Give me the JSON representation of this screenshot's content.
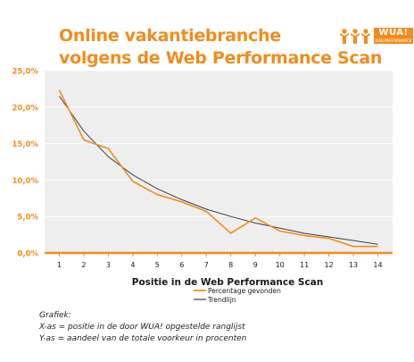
{
  "header": {
    "title_line1": "Online vakantiebranche",
    "title_line2": "volgens de Web Performance Scan"
  },
  "logo": {
    "text": "WUA!",
    "subtext": "WEB PERFORMANCE"
  },
  "colors": {
    "accent": "#f08c1f",
    "trend": "#3a3f52",
    "plot_bg": "#eeeeee",
    "grid": "#ffffff"
  },
  "chart_data": {
    "type": "line",
    "title": "",
    "xlabel": "Positie in de Web Performance Scan",
    "ylabel": "",
    "x": [
      1,
      2,
      3,
      4,
      5,
      6,
      7,
      8,
      9,
      10,
      11,
      12,
      13,
      14
    ],
    "x_tick_labels": [
      "1",
      "2",
      "3",
      "4",
      "5",
      "6",
      "7",
      "8",
      "9",
      "10",
      "11",
      "12",
      "13",
      "14"
    ],
    "ylim": [
      0,
      25
    ],
    "y_ticks": [
      0,
      5,
      10,
      15,
      20,
      25
    ],
    "y_tick_labels": [
      "0,0%",
      "5,0%",
      "10,0%",
      "15,0%",
      "20,0%",
      "25,0%"
    ],
    "grid": true,
    "legend_position": "bottom-right",
    "series": [
      {
        "name": "Percentage gevonden",
        "color": "#f08c1f",
        "values": [
          22.3,
          15.5,
          14.3,
          9.8,
          8.0,
          7.0,
          5.7,
          2.7,
          4.8,
          3.0,
          2.4,
          2.0,
          0.9,
          0.9
        ]
      },
      {
        "name": "Trendlijn",
        "color": "#3a3f52",
        "values": [
          21.5,
          16.7,
          13.2,
          10.7,
          8.8,
          7.3,
          6.0,
          5.0,
          4.1,
          3.4,
          2.7,
          2.2,
          1.7,
          1.2
        ]
      }
    ]
  },
  "notes": {
    "line1": "Grafiek:",
    "line2": "X-as = positie in de door WUA! opgestelde ranglijst",
    "line3": "Y-as = aandeel van de totale voorkeur in procenten"
  }
}
